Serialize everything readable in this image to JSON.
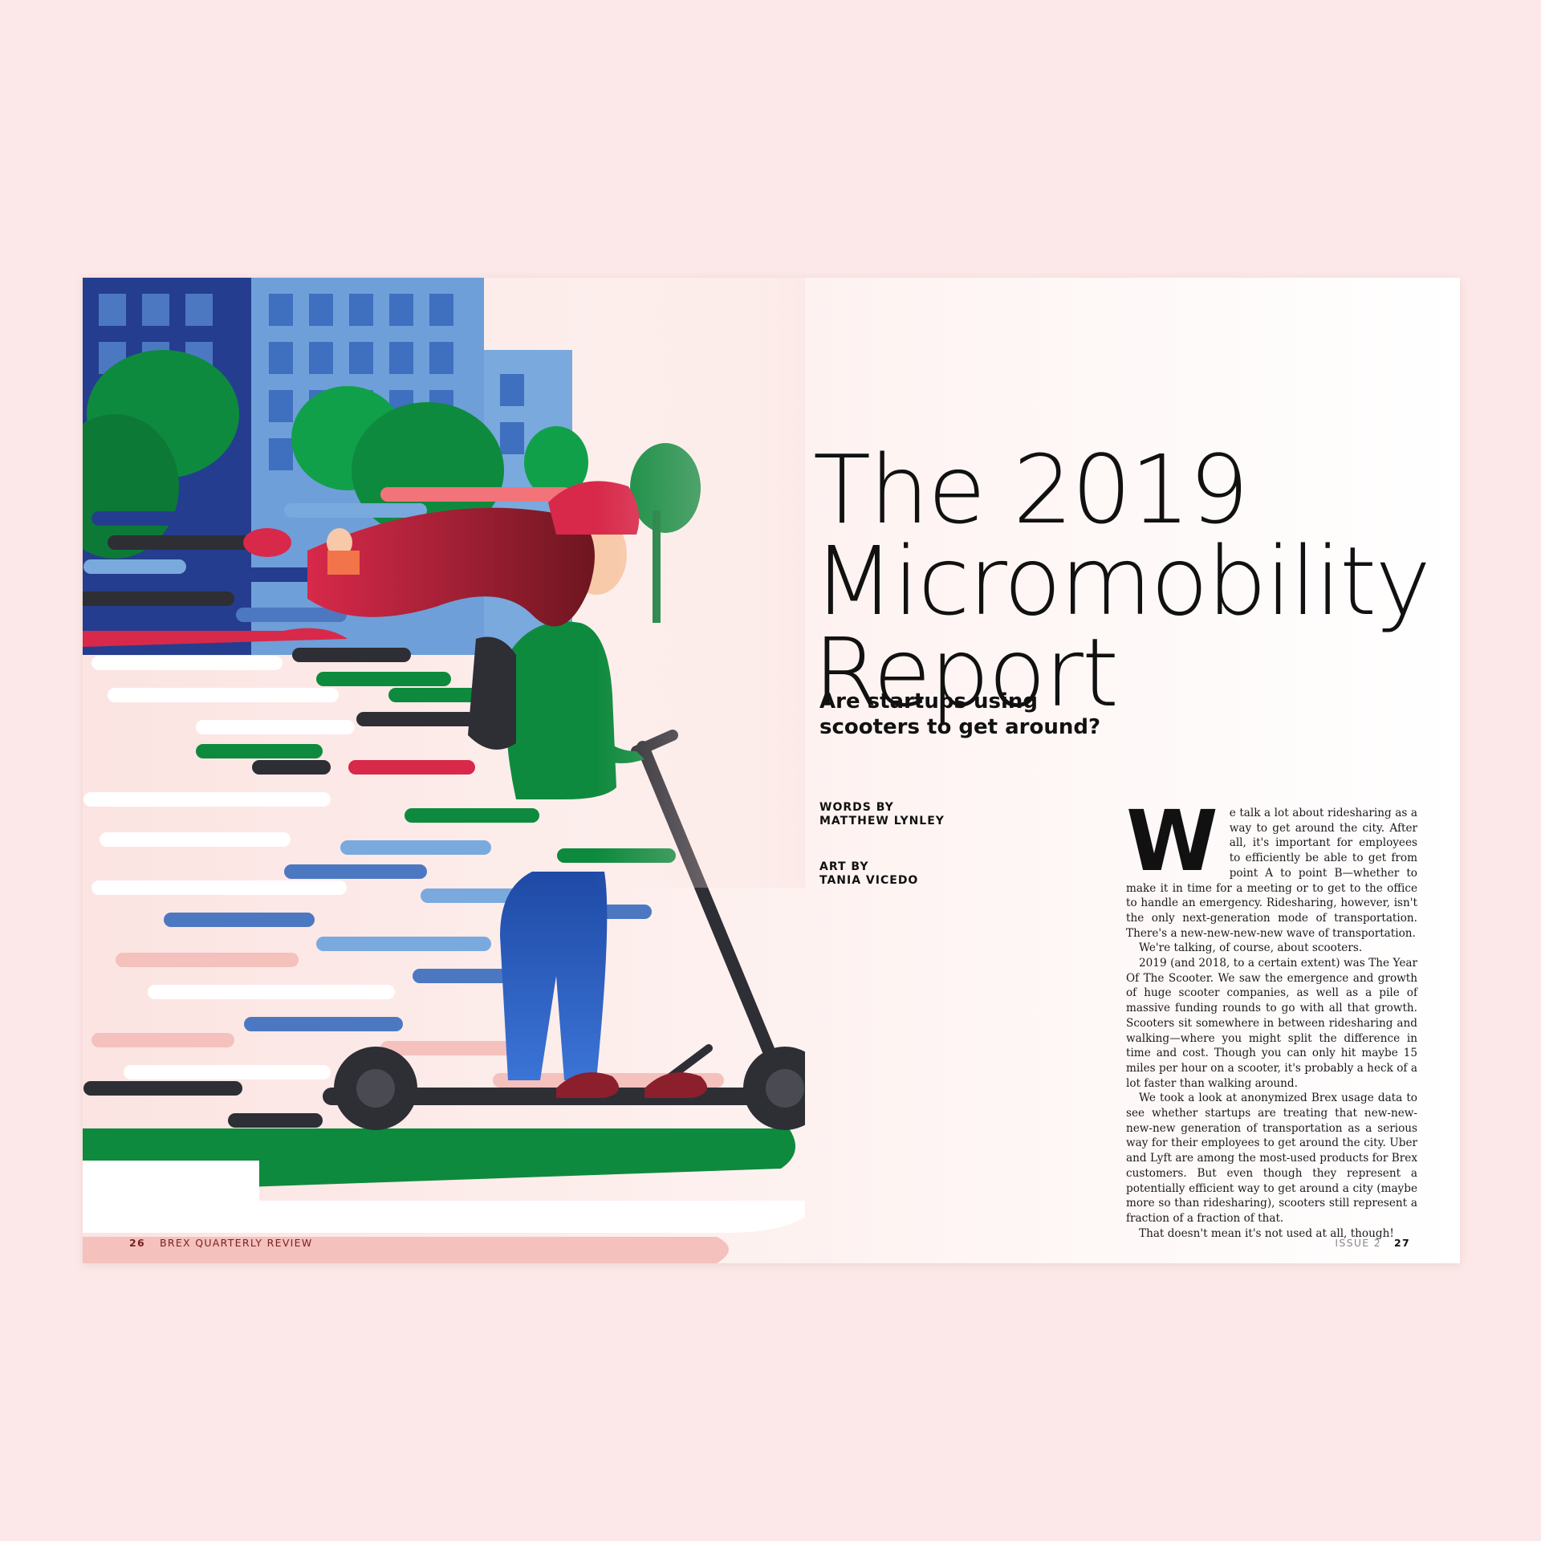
{
  "magazine": {
    "left_page": {
      "number": "26",
      "publication": "BREX QUARTERLY REVIEW"
    },
    "right_page": {
      "issue": "ISSUE 2",
      "number": "27"
    }
  },
  "article": {
    "title_lines": [
      "The 2019",
      "Micromobility",
      "Report"
    ],
    "dek_lines": [
      "Are startups using",
      "scooters to get around?"
    ],
    "credits": [
      {
        "role": "WORDS BY",
        "name": "MATTHEW LYNLEY"
      },
      {
        "role": "ART BY",
        "name": "TANIA VICEDO"
      }
    ],
    "dropcap": "W",
    "paragraphs": [
      "e talk a lot about ridesharing as a way to get around the city. After all, it's important for employees to efficiently be able to get from point A to point B—whether to make it in time for a meeting or to get to the office to handle an emergency. Ridesharing, however, isn't the only next-generation mode of transportation. There's a new-new-new-new wave of transportation.",
      "We're talking, of course, about scooters.",
      "2019 (and 2018, to a certain extent) was The Year Of The Scooter. We saw the emergence and growth of huge scooter companies, as well as a pile of massive funding rounds to go with all that growth. Scooters sit somewhere in between ridesharing and walking—where you might split the difference in time and cost. Though you can only hit maybe 15 miles per hour on a scooter, it's probably a heck of a lot faster than walking around.",
      "We took a look at anonymized Brex usage data to see whether startups are treating that new-new-new-new generation of transportation as a serious way for their employees to get around the city. Uber and Lyft are among the most-used products for Brex customers. But even though they represent a potentially efficient way to get around a city (maybe more so than ridesharing), scooters still represent a fraction of a fraction of that.",
      "That doesn't mean it's not used at all, though!"
    ]
  },
  "colors": {
    "background": "#fce8e8",
    "navy": "#253d8f",
    "sky_blue": "#7aa9dd",
    "green": "#0e8a3e",
    "red": "#d8294a",
    "pink": "#f4c1bd",
    "dark": "#2e2e35"
  }
}
